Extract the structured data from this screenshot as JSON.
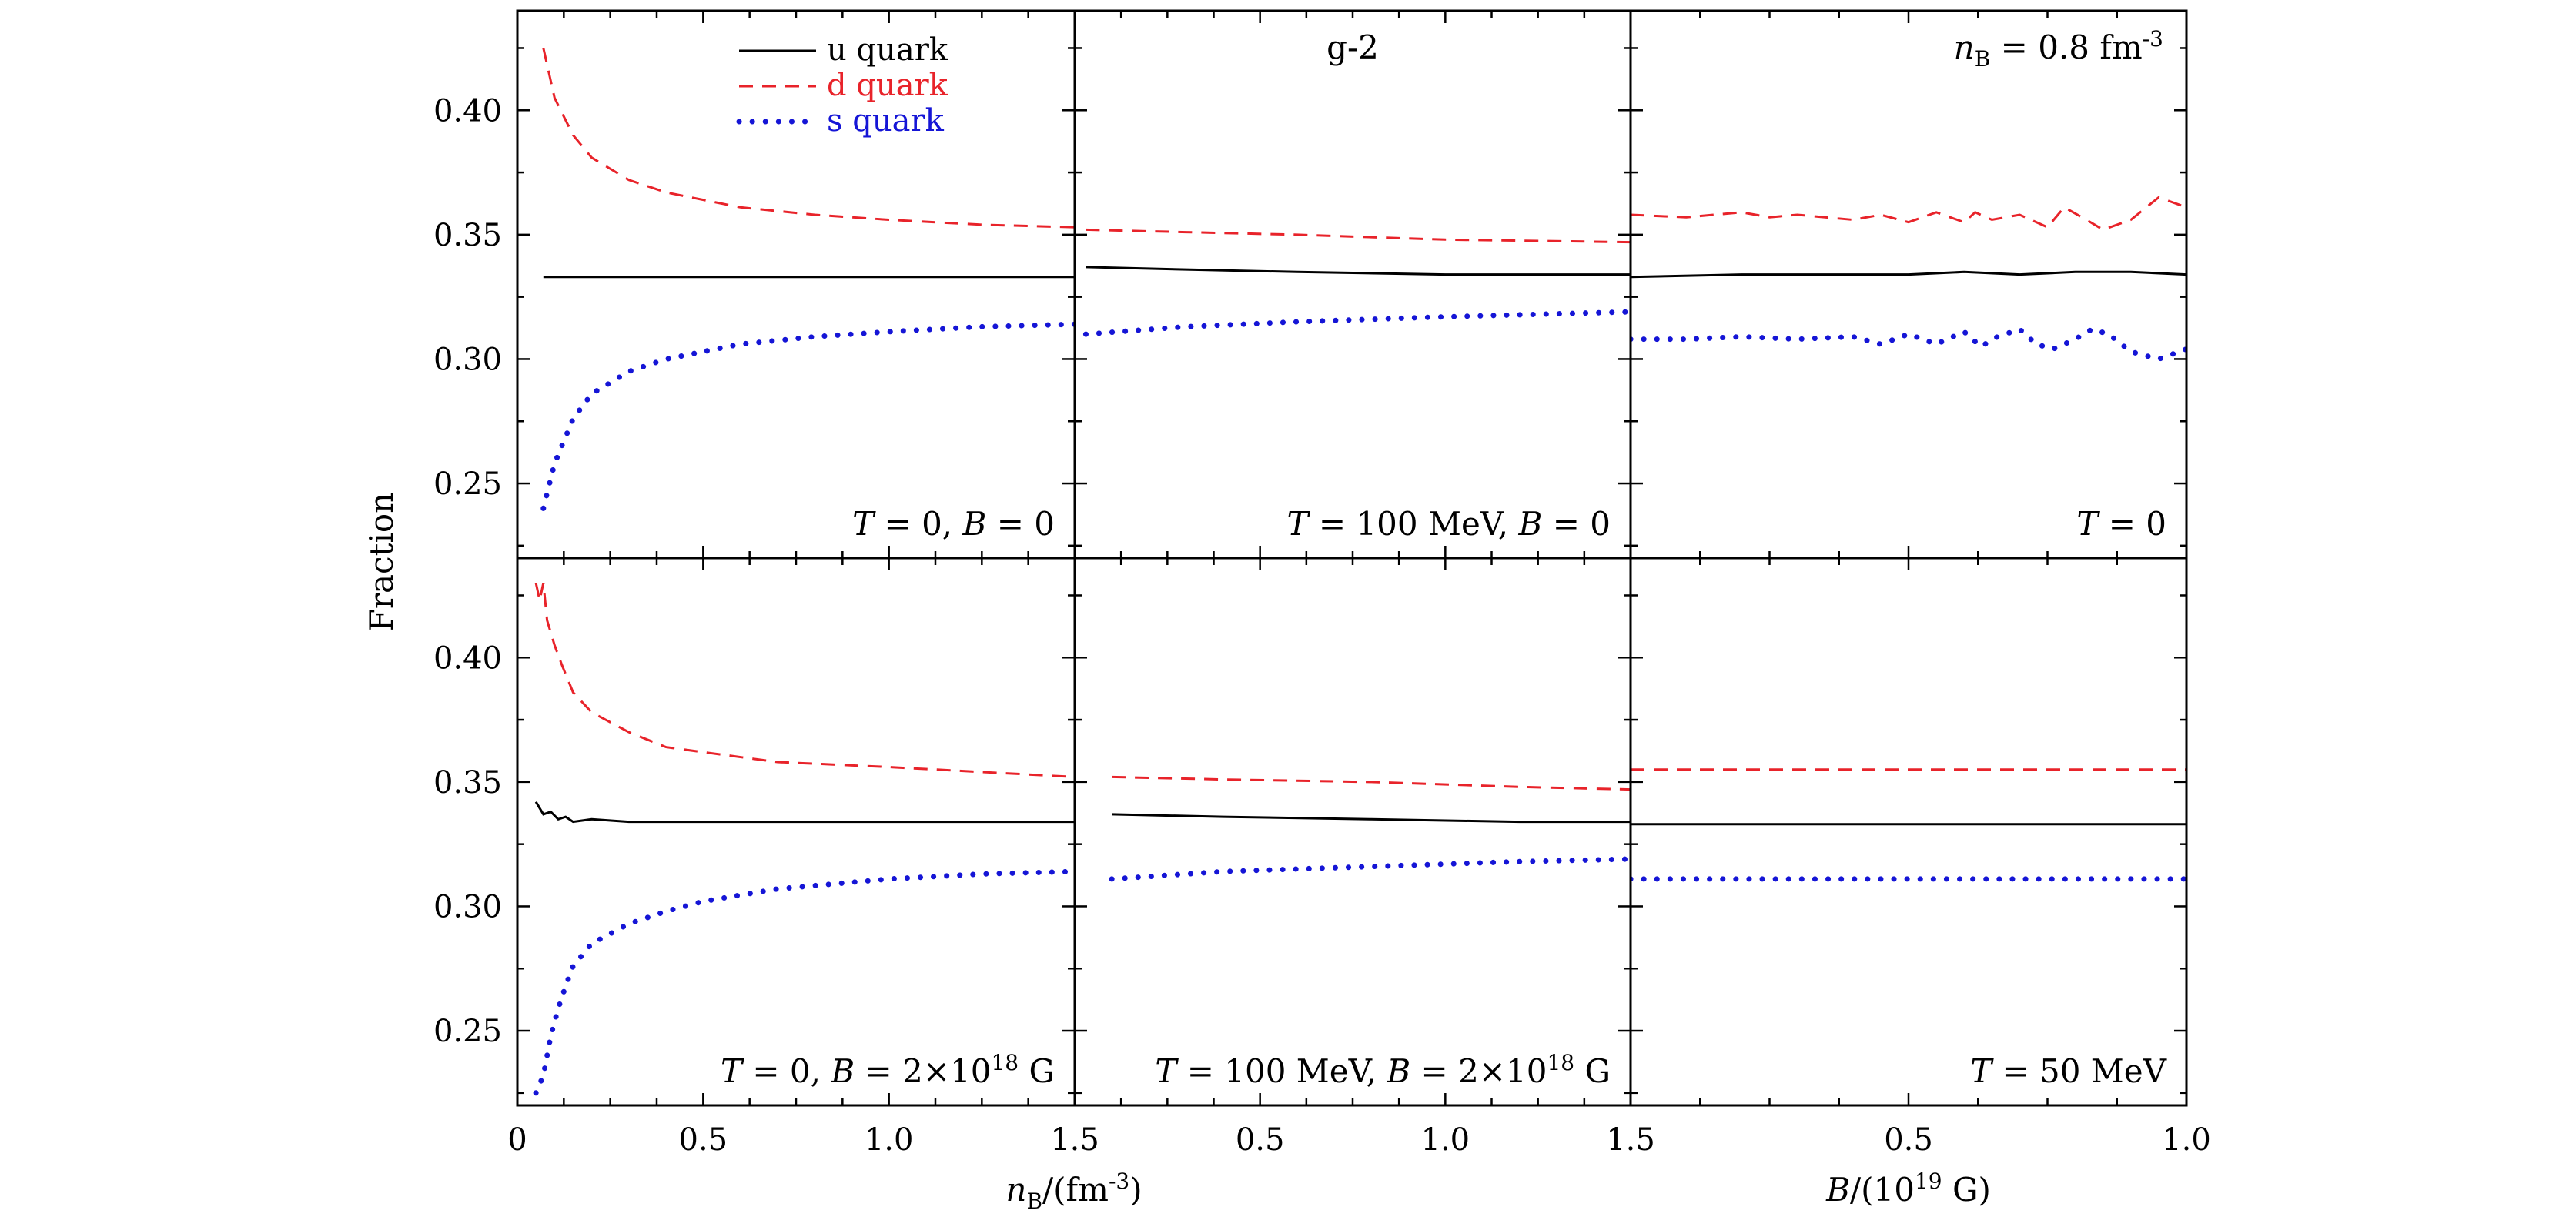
{
  "chart_data": {
    "type": "line",
    "ylabel": "Fraction",
    "ylim": [
      0.22,
      0.44
    ],
    "yticks": [
      "0.25",
      "0.30",
      "0.35",
      "0.40"
    ],
    "xlabels": {
      "density": "n_B/(fm^-3)",
      "field": "B/(10^19 G)"
    },
    "x_ticks_density_first": [
      "0",
      "0.5",
      "1.0"
    ],
    "x_ticks_density_last": [
      "1.5",
      "0.5",
      "1.0"
    ],
    "x_ticks_field": [
      "1.5",
      "0.5",
      "1.0"
    ],
    "legend": {
      "placement": "top-right of first panel",
      "entries": [
        {
          "label": "u quark",
          "color": "#000000",
          "style": "solid"
        },
        {
          "label": "d quark",
          "color": "#e8232a",
          "style": "dashed"
        },
        {
          "label": "s quark",
          "color": "#1515d6",
          "style": "dotted"
        }
      ]
    },
    "panels": [
      {
        "row": 0,
        "col": 0,
        "xaxis": "density",
        "xlim": [
          0,
          1.5
        ],
        "annotation": "T = 0,  B = 0",
        "series": [
          {
            "name": "u quark",
            "x": [
              0.07,
              0.3,
              0.6,
              1.0,
              1.5
            ],
            "y": [
              0.333,
              0.333,
              0.333,
              0.333,
              0.333
            ]
          },
          {
            "name": "d quark",
            "x": [
              0.07,
              0.1,
              0.15,
              0.2,
              0.3,
              0.4,
              0.6,
              0.8,
              1.0,
              1.25,
              1.5
            ],
            "y": [
              0.425,
              0.405,
              0.39,
              0.381,
              0.372,
              0.367,
              0.361,
              0.358,
              0.356,
              0.354,
              0.353
            ]
          },
          {
            "name": "s quark",
            "x": [
              0.07,
              0.1,
              0.15,
              0.2,
              0.3,
              0.4,
              0.6,
              0.8,
              1.0,
              1.25,
              1.5
            ],
            "y": [
              0.24,
              0.258,
              0.276,
              0.286,
              0.295,
              0.3,
              0.306,
              0.309,
              0.311,
              0.313,
              0.314
            ]
          }
        ]
      },
      {
        "row": 0,
        "col": 1,
        "xaxis": "density",
        "xlim": [
          0,
          1.5
        ],
        "annotation": "T = 100 MeV,  B = 0",
        "label": "g-2",
        "series": [
          {
            "name": "u quark",
            "x": [
              0.03,
              0.3,
              0.6,
              1.0,
              1.5
            ],
            "y": [
              0.337,
              0.336,
              0.335,
              0.334,
              0.334
            ]
          },
          {
            "name": "d quark",
            "x": [
              0.03,
              0.3,
              0.6,
              1.0,
              1.5
            ],
            "y": [
              0.352,
              0.351,
              0.35,
              0.348,
              0.347
            ]
          },
          {
            "name": "s quark",
            "x": [
              0.03,
              0.3,
              0.6,
              1.0,
              1.5
            ],
            "y": [
              0.31,
              0.313,
              0.315,
              0.317,
              0.319
            ]
          }
        ]
      },
      {
        "row": 0,
        "col": 2,
        "xaxis": "field",
        "xlim": [
          0,
          1.0
        ],
        "annotation": "T = 0",
        "label": "n_B = 0.8 fm^-3",
        "series": [
          {
            "name": "u quark",
            "x": [
              0.0,
              0.2,
              0.4,
              0.5,
              0.6,
              0.7,
              0.8,
              0.9,
              1.0
            ],
            "y": [
              0.333,
              0.334,
              0.334,
              0.334,
              0.335,
              0.334,
              0.335,
              0.335,
              0.334
            ]
          },
          {
            "name": "d quark",
            "x": [
              0.0,
              0.1,
              0.2,
              0.25,
              0.3,
              0.4,
              0.45,
              0.5,
              0.55,
              0.6,
              0.62,
              0.65,
              0.7,
              0.75,
              0.78,
              0.82,
              0.85,
              0.9,
              0.95,
              1.0
            ],
            "y": [
              0.358,
              0.357,
              0.359,
              0.357,
              0.358,
              0.356,
              0.358,
              0.355,
              0.359,
              0.355,
              0.359,
              0.356,
              0.358,
              0.353,
              0.361,
              0.356,
              0.352,
              0.356,
              0.365,
              0.361
            ]
          },
          {
            "name": "s quark",
            "x": [
              0.0,
              0.1,
              0.2,
              0.3,
              0.4,
              0.45,
              0.5,
              0.55,
              0.6,
              0.63,
              0.66,
              0.7,
              0.73,
              0.76,
              0.8,
              0.83,
              0.86,
              0.9,
              0.95,
              1.0
            ],
            "y": [
              0.308,
              0.308,
              0.309,
              0.308,
              0.309,
              0.306,
              0.31,
              0.306,
              0.311,
              0.305,
              0.309,
              0.312,
              0.306,
              0.304,
              0.308,
              0.312,
              0.31,
              0.303,
              0.3,
              0.304
            ]
          }
        ]
      },
      {
        "row": 1,
        "col": 0,
        "xaxis": "density",
        "xlim": [
          0,
          1.5
        ],
        "annotation": "T = 0,  B = 2×10^18 G",
        "series": [
          {
            "name": "u quark",
            "x": [
              0.05,
              0.07,
              0.09,
              0.11,
              0.13,
              0.15,
              0.2,
              0.3,
              0.5,
              1.0,
              1.5
            ],
            "y": [
              0.342,
              0.337,
              0.338,
              0.335,
              0.336,
              0.334,
              0.335,
              0.334,
              0.334,
              0.334,
              0.334
            ]
          },
          {
            "name": "d quark",
            "x": [
              0.05,
              0.06,
              0.07,
              0.08,
              0.1,
              0.12,
              0.15,
              0.2,
              0.3,
              0.4,
              0.5,
              0.7,
              1.0,
              1.25,
              1.5
            ],
            "y": [
              0.43,
              0.423,
              0.43,
              0.415,
              0.405,
              0.397,
              0.386,
              0.378,
              0.37,
              0.364,
              0.362,
              0.358,
              0.356,
              0.354,
              0.352
            ]
          },
          {
            "name": "s quark",
            "x": [
              0.05,
              0.07,
              0.09,
              0.11,
              0.13,
              0.15,
              0.2,
              0.3,
              0.4,
              0.5,
              0.7,
              1.0,
              1.25,
              1.5
            ],
            "y": [
              0.225,
              0.232,
              0.248,
              0.259,
              0.268,
              0.276,
              0.285,
              0.293,
              0.298,
              0.302,
              0.307,
              0.311,
              0.313,
              0.314
            ]
          }
        ]
      },
      {
        "row": 1,
        "col": 1,
        "xaxis": "density",
        "xlim": [
          0,
          1.5
        ],
        "annotation": "T = 100 MeV,  B = 2×10^18 G",
        "series": [
          {
            "name": "u quark",
            "x": [
              0.1,
              0.4,
              0.8,
              1.2,
              1.5
            ],
            "y": [
              0.337,
              0.336,
              0.335,
              0.334,
              0.334
            ]
          },
          {
            "name": "d quark",
            "x": [
              0.1,
              0.4,
              0.8,
              1.2,
              1.5
            ],
            "y": [
              0.352,
              0.351,
              0.35,
              0.348,
              0.347
            ]
          },
          {
            "name": "s quark",
            "x": [
              0.1,
              0.4,
              0.8,
              1.2,
              1.5
            ],
            "y": [
              0.311,
              0.314,
              0.316,
              0.318,
              0.319
            ]
          }
        ]
      },
      {
        "row": 1,
        "col": 2,
        "xaxis": "field",
        "xlim": [
          0,
          1.0
        ],
        "annotation": "T = 50 MeV",
        "series": [
          {
            "name": "u quark",
            "x": [
              0.0,
              1.0
            ],
            "y": [
              0.333,
              0.333
            ]
          },
          {
            "name": "d quark",
            "x": [
              0.0,
              1.0
            ],
            "y": [
              0.355,
              0.355
            ]
          },
          {
            "name": "s quark",
            "x": [
              0.0,
              1.0
            ],
            "y": [
              0.311,
              0.311
            ]
          }
        ]
      }
    ]
  }
}
